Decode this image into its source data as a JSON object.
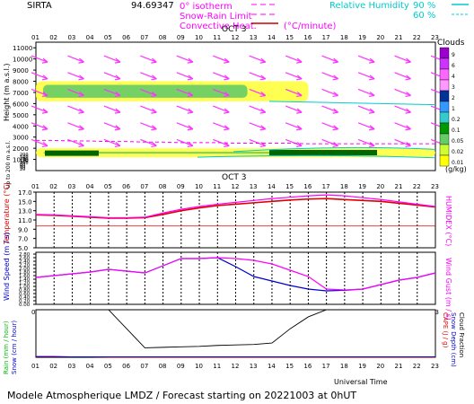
{
  "header": {
    "site": "SIRTA",
    "coord": "94.69347",
    "legend_isotherm": "0° isotherm",
    "legend_snow": "Snow-Rain Limit",
    "legend_conv": "Convective Heat.",
    "legend_conv_unit": "(°C/minute)",
    "legend_rh": "Relative Humidity",
    "rh_90": "90 %",
    "rh_60": "60 %"
  },
  "colors": {
    "magenta": "#ff00ff",
    "cyan": "#00d8d8",
    "red": "#e00000",
    "blue": "#0000cc",
    "black": "#000000"
  },
  "hours": [
    "01",
    "02",
    "03",
    "04",
    "05",
    "06",
    "07",
    "08",
    "09",
    "10",
    "11",
    "12",
    "13",
    "14",
    "15",
    "16",
    "17",
    "18",
    "19",
    "20",
    "21",
    "22",
    "23"
  ],
  "date_label": "OCT 3",
  "footer": {
    "title": "Modele Atmospherique LMDZ / Forecast starting on 20221003 at 0hUT",
    "xlabel": "Universal Time"
  },
  "clouds_scale": {
    "title": "Clouds",
    "unit": "(g/kg)",
    "levels": [
      "9",
      "6",
      "4",
      "3",
      "2",
      "1",
      "0.2",
      "0.1",
      "0.05",
      "0.02",
      "0.01"
    ],
    "colors": [
      "#9900cc",
      "#cc33ff",
      "#ff66ff",
      "#ff99ff",
      "#003399",
      "#3399ff",
      "#33cccc",
      "#009900",
      "#66cc66",
      "#ccff33",
      "#ffff00"
    ]
  },
  "chart_data": [
    {
      "type": "heatmap",
      "ylabel": "Height (m a.s.l.)",
      "yticks_upper": [
        1000,
        2000,
        3000,
        4000,
        5000,
        6000,
        7000,
        8000,
        9000,
        10000,
        11000
      ],
      "ylabel_lower": "Up to 200 m a.s.l.",
      "yticks_lower": [
        20,
        40,
        60,
        80,
        100,
        120,
        140,
        160,
        180,
        200
      ],
      "ylim": [
        0,
        11500
      ],
      "isotherm_0c_m": [
        2700,
        2700,
        2650,
        2650,
        2600,
        2600,
        2550,
        2550,
        2500,
        2500,
        2500,
        2450,
        2450,
        2450,
        2450,
        2400,
        2400,
        2400,
        2400,
        2400,
        2400,
        2400,
        2400
      ],
      "cloud_layers": [
        {
          "name": "upper cloud",
          "start_hour": 1,
          "end_hour": 16,
          "base_m": 6200,
          "top_m": 8000
        },
        {
          "name": "low cloud",
          "start_hour": 1,
          "end_hour": 23,
          "base_m": 1200,
          "top_m": 2000
        }
      ]
    },
    {
      "type": "line",
      "ylabel": "Temperature (°C)",
      "ylabel_right": "HUMIDEX (°C)",
      "yticks": [
        5.0,
        7.0,
        9.0,
        11.0,
        13.0,
        15.0,
        17.0
      ],
      "ylim": [
        5.0,
        17.0
      ],
      "series": [
        {
          "name": "Temperature",
          "values": [
            12.1,
            12.0,
            11.8,
            11.6,
            11.4,
            11.4,
            11.5,
            12.2,
            13.0,
            13.6,
            14.1,
            14.4,
            14.7,
            15.0,
            15.3,
            15.5,
            15.6,
            15.4,
            15.2,
            15.0,
            14.6,
            14.2,
            13.8
          ]
        },
        {
          "name": "HUMIDEX",
          "values": [
            12.2,
            12.1,
            11.9,
            11.7,
            11.5,
            11.5,
            11.6,
            12.5,
            13.3,
            13.9,
            14.4,
            14.8,
            15.2,
            15.6,
            15.9,
            16.2,
            16.4,
            16.2,
            15.8,
            15.4,
            14.9,
            14.4,
            13.9
          ]
        },
        {
          "name": "Reference",
          "values": [
            9.7,
            9.7,
            9.7,
            9.7,
            9.7,
            9.7,
            9.7,
            9.7,
            9.7,
            9.7,
            9.7,
            9.7,
            9.7,
            9.7,
            9.7,
            9.7,
            9.7,
            9.7,
            9.7,
            9.7,
            9.7,
            9.7,
            9.7
          ]
        }
      ]
    },
    {
      "type": "line",
      "ylabel": "Wind Speed (m / s)",
      "ylabel_right": "Wind Gust (m / s)",
      "yticks": [
        0.0,
        0.2,
        0.4,
        0.6,
        0.8,
        1.0,
        1.2,
        1.4,
        1.6,
        1.8,
        2.0,
        2.2,
        2.4,
        2.6,
        2.8
      ],
      "ylim": [
        0.0,
        2.9
      ],
      "series": [
        {
          "name": "Wind Speed",
          "values": [
            1.5,
            1.6,
            1.7,
            1.8,
            1.95,
            1.85,
            1.75,
            2.15,
            2.55,
            2.55,
            2.6,
            2.1,
            1.55,
            1.3,
            1.05,
            0.85,
            0.75,
            0.78,
            0.85,
            1.1,
            1.35,
            1.5,
            1.75
          ]
        },
        {
          "name": "Wind Gust",
          "values": [
            1.5,
            1.6,
            1.7,
            1.8,
            1.95,
            1.85,
            1.75,
            2.15,
            2.55,
            2.55,
            2.6,
            2.55,
            2.45,
            2.25,
            1.9,
            1.55,
            0.85,
            0.8,
            0.85,
            1.1,
            1.35,
            1.5,
            1.75
          ]
        }
      ]
    },
    {
      "type": "line",
      "ylabel_left": [
        "Rain (mm / hour)",
        "Snow (cm / hour)"
      ],
      "ylabel_right": [
        "CAPE (J / g)",
        "Snow Depth (cm)",
        "Cloud Fraction"
      ],
      "ylim": [
        0,
        1.0
      ],
      "series": [
        {
          "name": "Cloud Fraction",
          "values": [
            1.0,
            1.0,
            1.0,
            1.0,
            1.0,
            0.6,
            0.2,
            0.21,
            0.22,
            0.23,
            0.25,
            0.26,
            0.27,
            0.3,
            0.6,
            0.85,
            1.0,
            1.0,
            1.0,
            1.0,
            1.0,
            1.0,
            1.0
          ]
        },
        {
          "name": "Rain",
          "values": [
            0.02,
            0.02,
            0.01,
            0.01,
            0,
            0,
            0,
            0,
            0,
            0,
            0,
            0,
            0,
            0,
            0,
            0,
            0,
            0,
            0,
            0,
            0,
            0,
            0
          ]
        }
      ]
    }
  ]
}
